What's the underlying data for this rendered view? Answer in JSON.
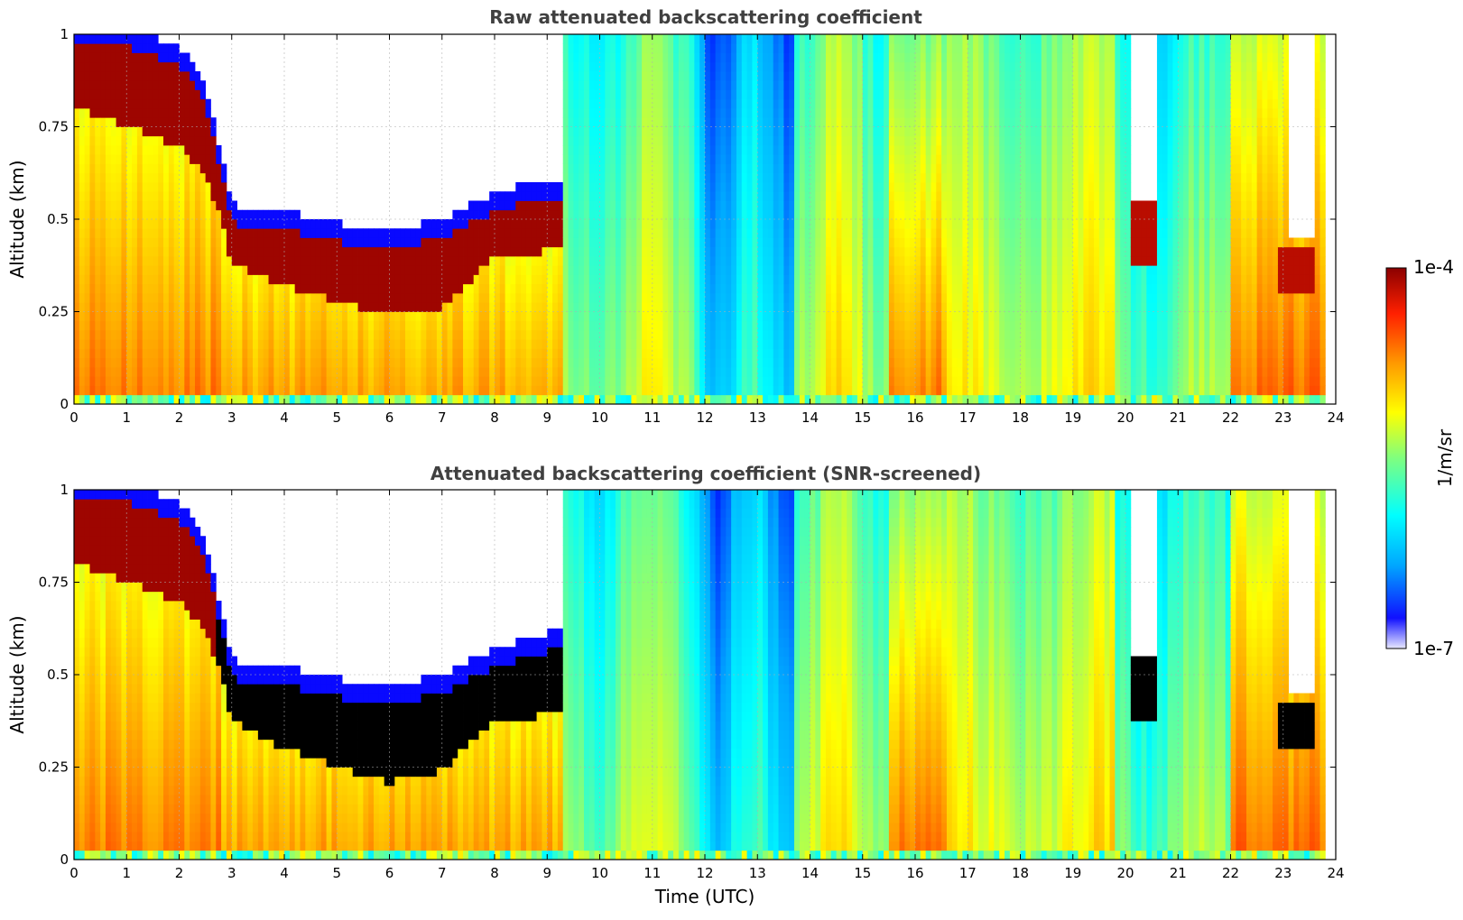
{
  "chart_data": [
    {
      "type": "heatmap",
      "title": "Raw attenuated backscattering coefficient",
      "xlabel": "",
      "ylabel": "Altitude (km)",
      "xlim": [
        0,
        24
      ],
      "ylim": [
        0,
        1
      ],
      "xticks": [
        "0",
        "1",
        "2",
        "3",
        "4",
        "5",
        "6",
        "7",
        "8",
        "9",
        "10",
        "11",
        "12",
        "13",
        "14",
        "15",
        "16",
        "17",
        "18",
        "19",
        "20",
        "21",
        "22",
        "23",
        "24"
      ],
      "yticks": [
        "0",
        "0.25",
        "0.5",
        "0.75",
        "1"
      ],
      "grid": true,
      "screened": false,
      "cloud_layer": {
        "time": [
          0,
          1,
          2,
          2.5,
          2.8,
          3,
          4,
          5,
          6,
          7,
          8,
          8.5,
          9.2
        ],
        "base_km": [
          0.8,
          0.75,
          0.7,
          0.62,
          0.5,
          0.38,
          0.32,
          0.28,
          0.24,
          0.26,
          0.4,
          0.4,
          0.42
        ],
        "top_km": [
          1.0,
          1.0,
          0.95,
          0.85,
          0.65,
          0.52,
          0.5,
          0.47,
          0.45,
          0.48,
          0.55,
          0.57,
          0.58
        ]
      }
    },
    {
      "type": "heatmap",
      "title": "Attenuated backscattering coefficient (SNR-screened)",
      "xlabel": "Time (UTC)",
      "ylabel": "Altitude (km)",
      "xlim": [
        0,
        24
      ],
      "ylim": [
        0,
        1
      ],
      "xticks": [
        "0",
        "1",
        "2",
        "3",
        "4",
        "5",
        "6",
        "7",
        "8",
        "9",
        "10",
        "11",
        "12",
        "13",
        "14",
        "15",
        "16",
        "17",
        "18",
        "19",
        "20",
        "21",
        "22",
        "23",
        "24"
      ],
      "yticks": [
        "0",
        "0.25",
        "0.5",
        "0.75",
        "1"
      ],
      "grid": true,
      "screened": true,
      "cloud_layer": {
        "time": [
          0,
          1,
          2,
          2.5,
          2.8,
          3,
          4,
          5,
          6,
          7,
          8,
          8.5,
          9.2
        ],
        "base_km": [
          0.8,
          0.75,
          0.7,
          0.62,
          0.5,
          0.38,
          0.3,
          0.25,
          0.21,
          0.24,
          0.38,
          0.38,
          0.4
        ],
        "top_km": [
          1.0,
          1.0,
          0.95,
          0.85,
          0.65,
          0.52,
          0.5,
          0.47,
          0.45,
          0.48,
          0.55,
          0.57,
          0.6
        ]
      }
    }
  ],
  "colorbar": {
    "label": "1/m/sr",
    "min_label": "1e-7",
    "max_label": "1e-4",
    "colormap": [
      "#e8e8ff",
      "#0000ff",
      "#00a8ff",
      "#00ffff",
      "#7fff7f",
      "#ffff00",
      "#ff9900",
      "#ff2000",
      "#8b0000"
    ]
  },
  "colors": {
    "screened_mask": "#000000",
    "no_data": "#ffffff"
  }
}
